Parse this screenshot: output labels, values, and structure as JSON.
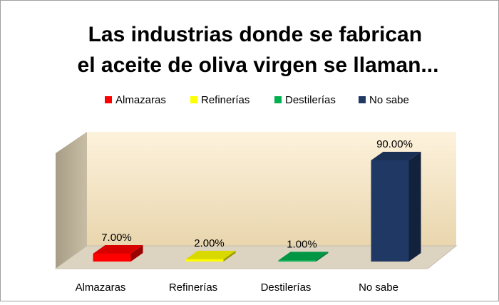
{
  "chart_data": {
    "type": "bar3d",
    "title": "Las industrias donde se fabrican el aceite de oliva virgen se llaman...",
    "categories": [
      "Almazaras",
      "Refinerías",
      "Destilerías",
      "No sabe"
    ],
    "values": [
      7,
      2,
      1,
      90
    ],
    "value_labels": [
      "7.00%",
      "2.00%",
      "1.00%",
      "90.00%"
    ],
    "colors": [
      "#ff0000",
      "#ffff00",
      "#00b050",
      "#1f3864"
    ],
    "legend": "top"
  }
}
